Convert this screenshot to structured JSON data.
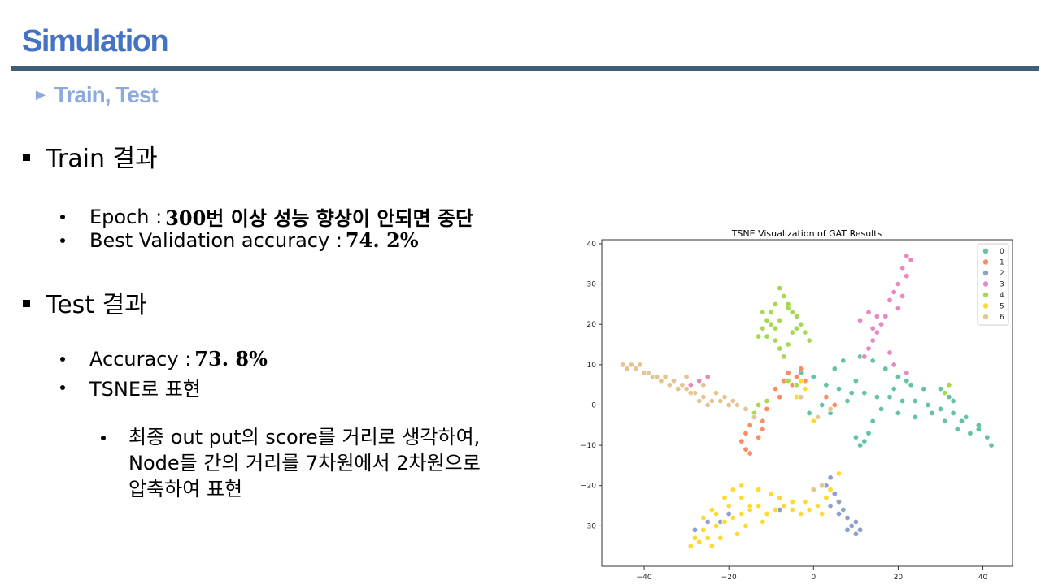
{
  "slide": {
    "title": "Simulation",
    "subtitle": "Train, Test",
    "subtitle_marker": "►",
    "sections": [
      {
        "heading": "Train 결과",
        "items": [
          {
            "label": "Epoch :",
            "value": "300번 이상 성능 향상이 안되면 중단"
          },
          {
            "label": "Best Validation accuracy :",
            "value": "74. 2%"
          }
        ]
      },
      {
        "heading": "Test 결과",
        "items": [
          {
            "label": "Accuracy :",
            "value": "73. 8%"
          },
          {
            "label": "TSNE로 표현",
            "value": ""
          }
        ]
      }
    ],
    "sub_note": "최종 out put의 score를 거리로 생각하여,\nNode들 간의 거리를 7차원에서 2차원으로\n압축하여 표현"
  },
  "chart_data": {
    "type": "scatter",
    "title": "TSNE Visualization of GAT Results",
    "xlabel": "",
    "ylabel": "",
    "xlim": [
      -50,
      47
    ],
    "ylim": [
      -40,
      41
    ],
    "xticks": [
      -40,
      -20,
      0,
      20,
      40
    ],
    "yticks": [
      -30,
      -20,
      -10,
      0,
      10,
      20,
      30,
      40
    ],
    "grid": false,
    "legend": "top-right",
    "colors": [
      "#66c2a5",
      "#fc8d62",
      "#8da0cb",
      "#e78ac3",
      "#a6d854",
      "#ffd92f",
      "#e5c494"
    ],
    "series": [
      {
        "name": "0",
        "points": [
          [
            -3,
            8
          ],
          [
            0,
            7
          ],
          [
            3,
            5
          ],
          [
            6,
            4
          ],
          [
            9,
            3
          ],
          [
            12,
            3
          ],
          [
            15,
            2
          ],
          [
            18,
            2
          ],
          [
            21,
            1
          ],
          [
            24,
            1
          ],
          [
            27,
            0
          ],
          [
            30,
            -1
          ],
          [
            33,
            -2
          ],
          [
            36,
            -3
          ],
          [
            39,
            -5
          ],
          [
            41,
            -8
          ],
          [
            42,
            -10
          ],
          [
            5,
            9
          ],
          [
            7,
            11
          ],
          [
            11,
            12
          ],
          [
            14,
            11
          ],
          [
            17,
            9
          ],
          [
            20,
            7
          ],
          [
            23,
            5
          ],
          [
            26,
            4
          ],
          [
            16,
            -1
          ],
          [
            14,
            -4
          ],
          [
            13,
            -7
          ],
          [
            12,
            -9
          ],
          [
            11,
            -10
          ],
          [
            10,
            -8
          ],
          [
            20,
            -2
          ],
          [
            24,
            -3
          ],
          [
            28,
            -2
          ],
          [
            31,
            -4
          ],
          [
            34,
            -6
          ],
          [
            37,
            -7
          ],
          [
            39,
            -6
          ],
          [
            32,
            2
          ],
          [
            30,
            4
          ],
          [
            19,
            4
          ],
          [
            8,
            1
          ],
          [
            4,
            -2
          ],
          [
            2,
            0
          ],
          [
            -1,
            -2
          ],
          [
            33,
            1
          ],
          [
            35,
            -4
          ],
          [
            22,
            6
          ],
          [
            10,
            6
          ]
        ]
      },
      {
        "name": "1",
        "points": [
          [
            -14,
            -3
          ],
          [
            -15,
            -5
          ],
          [
            -16,
            -7
          ],
          [
            -17,
            -9
          ],
          [
            -16,
            -11
          ],
          [
            -15,
            -12
          ],
          [
            -13,
            -8
          ],
          [
            -12,
            -6
          ],
          [
            -7,
            6
          ],
          [
            -6,
            8
          ],
          [
            -4,
            7
          ],
          [
            -5,
            5
          ],
          [
            -3,
            9
          ],
          [
            -9,
            4
          ],
          [
            -8,
            2
          ],
          [
            -2,
            6
          ],
          [
            3,
            2
          ],
          [
            5,
            0
          ],
          [
            -11,
            -1
          ],
          [
            -12,
            -4
          ]
        ]
      },
      {
        "name": "2",
        "points": [
          [
            5,
            -22
          ],
          [
            6,
            -24
          ],
          [
            7,
            -26
          ],
          [
            8,
            -28
          ],
          [
            9,
            -30
          ],
          [
            10,
            -32
          ],
          [
            11,
            -31
          ],
          [
            8,
            -31
          ],
          [
            6,
            -27
          ],
          [
            4,
            -25
          ],
          [
            3,
            -20
          ],
          [
            4,
            -18
          ],
          [
            -20,
            -27
          ],
          [
            -22,
            -29
          ],
          [
            -25,
            -29
          ],
          [
            -28,
            -31
          ],
          [
            -8,
            -26
          ],
          [
            10,
            -29
          ]
        ]
      },
      {
        "name": "3",
        "points": [
          [
            22,
            37
          ],
          [
            23,
            36
          ],
          [
            21,
            34
          ],
          [
            22,
            32
          ],
          [
            20,
            30
          ],
          [
            19,
            28
          ],
          [
            21,
            27
          ],
          [
            18,
            26
          ],
          [
            20,
            24
          ],
          [
            17,
            22
          ],
          [
            16,
            20
          ],
          [
            15,
            18
          ],
          [
            14,
            16
          ],
          [
            13,
            14
          ],
          [
            12,
            12
          ],
          [
            11,
            21
          ],
          [
            13,
            23
          ],
          [
            15,
            22
          ],
          [
            18,
            13
          ],
          [
            19,
            10
          ],
          [
            22,
            8
          ],
          [
            -27,
            6
          ],
          [
            -25,
            7
          ],
          [
            -29,
            5
          ],
          [
            14,
            19
          ]
        ]
      },
      {
        "name": "4",
        "points": [
          [
            -8,
            29
          ],
          [
            -7,
            27
          ],
          [
            -6,
            25
          ],
          [
            -5,
            23
          ],
          [
            -8,
            21
          ],
          [
            -10,
            20
          ],
          [
            -12,
            19
          ],
          [
            -13,
            17
          ],
          [
            -11,
            17
          ],
          [
            -9,
            16
          ],
          [
            -8,
            14
          ],
          [
            -7,
            12
          ],
          [
            -6,
            24
          ],
          [
            -4,
            22
          ],
          [
            -3,
            20
          ],
          [
            -2,
            18
          ],
          [
            -1,
            16
          ],
          [
            -10,
            23
          ],
          [
            -12,
            23
          ],
          [
            -11,
            21
          ],
          [
            -9,
            19
          ],
          [
            -5,
            18
          ],
          [
            -6,
            15
          ],
          [
            -4,
            19
          ],
          [
            -11,
            1
          ],
          [
            -13,
            0
          ],
          [
            -14,
            -2
          ],
          [
            -6,
            6
          ],
          [
            -4,
            5
          ],
          [
            32,
            5
          ],
          [
            31,
            3
          ],
          [
            -9,
            25
          ]
        ]
      },
      {
        "name": "5",
        "points": [
          [
            -29,
            -35
          ],
          [
            -27,
            -34
          ],
          [
            -25,
            -33
          ],
          [
            -26,
            -31
          ],
          [
            -23,
            -30
          ],
          [
            -21,
            -29
          ],
          [
            -19,
            -28
          ],
          [
            -17,
            -27
          ],
          [
            -15,
            -26
          ],
          [
            -13,
            -25
          ],
          [
            -11,
            -27
          ],
          [
            -9,
            -26
          ],
          [
            -7,
            -25
          ],
          [
            -5,
            -26
          ],
          [
            -3,
            -27
          ],
          [
            -1,
            -26
          ],
          [
            1,
            -25
          ],
          [
            3,
            -23
          ],
          [
            4,
            -21
          ],
          [
            -17,
            -23
          ],
          [
            -19,
            -21
          ],
          [
            -21,
            -23
          ],
          [
            -24,
            -26
          ],
          [
            -26,
            -28
          ],
          [
            -16,
            -30
          ],
          [
            -18,
            -32
          ],
          [
            -22,
            -33
          ],
          [
            -13,
            -21
          ],
          [
            -10,
            -22
          ],
          [
            -5,
            -24
          ],
          [
            -15,
            -25
          ],
          [
            -20,
            -25
          ],
          [
            -28,
            -33
          ],
          [
            -24,
            -35
          ],
          [
            -12,
            -29
          ],
          [
            -8,
            -23
          ],
          [
            2,
            -27
          ],
          [
            -2,
            -24
          ],
          [
            6,
            -17
          ],
          [
            -3,
            6
          ],
          [
            -2,
            4
          ],
          [
            -4,
            2
          ],
          [
            0,
            -4
          ],
          [
            -17,
            -20
          ],
          [
            -23,
            -27
          ]
        ]
      },
      {
        "name": "6",
        "points": [
          [
            -45,
            10
          ],
          [
            -44,
            9
          ],
          [
            -42,
            9
          ],
          [
            -40,
            8
          ],
          [
            -38,
            7
          ],
          [
            -36,
            6
          ],
          [
            -34,
            5
          ],
          [
            -32,
            4
          ],
          [
            -30,
            4
          ],
          [
            -28,
            3
          ],
          [
            -26,
            2
          ],
          [
            -24,
            1
          ],
          [
            -22,
            1
          ],
          [
            -20,
            0
          ],
          [
            -18,
            0
          ],
          [
            -16,
            -1
          ],
          [
            -14,
            -3
          ],
          [
            -43,
            10
          ],
          [
            -41,
            10
          ],
          [
            -39,
            8
          ],
          [
            -37,
            7
          ],
          [
            -35,
            7
          ],
          [
            -33,
            6
          ],
          [
            -31,
            5
          ],
          [
            -29,
            3
          ],
          [
            -27,
            1
          ],
          [
            -25,
            0
          ],
          [
            -23,
            3
          ],
          [
            -21,
            2
          ],
          [
            -19,
            1
          ],
          [
            -30,
            7
          ],
          [
            -26,
            5
          ],
          [
            -3,
            2
          ],
          [
            1,
            -3
          ],
          [
            4,
            -1
          ],
          [
            2,
            -20
          ],
          [
            0,
            -21
          ]
        ]
      }
    ]
  }
}
